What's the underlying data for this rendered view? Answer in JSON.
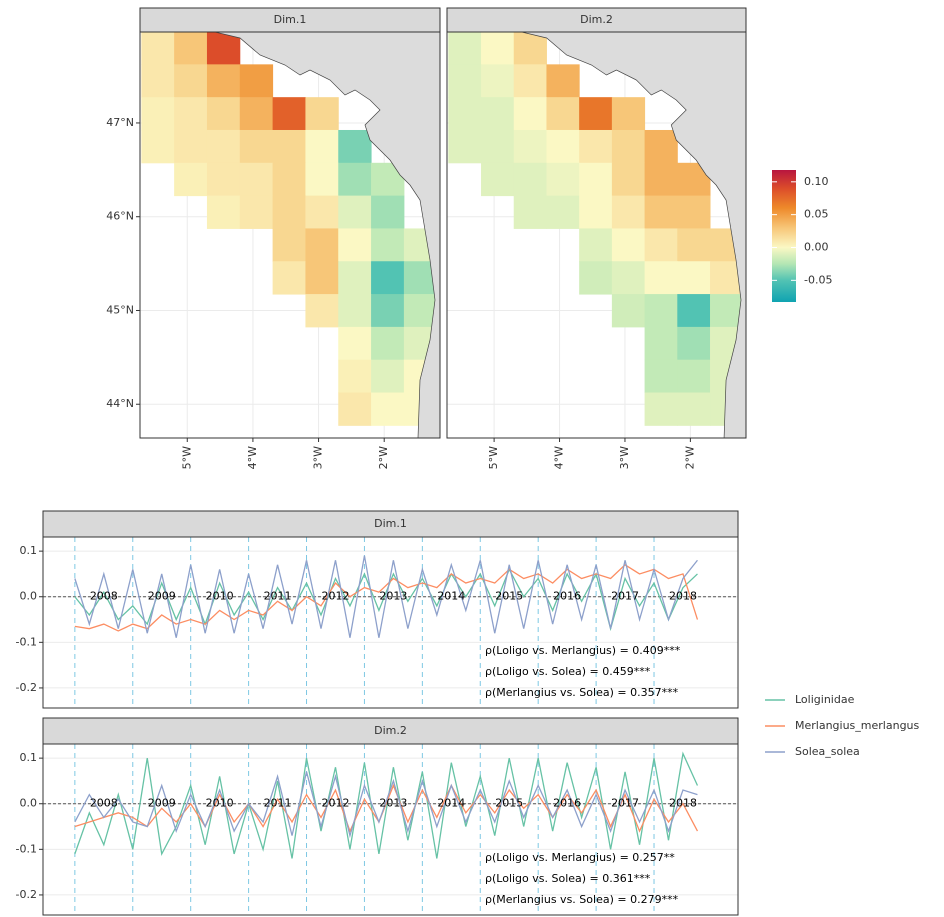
{
  "chart_data": [
    {
      "type": "heatmap",
      "x": [
        -5.45,
        -4.95,
        -4.45,
        -3.95,
        -3.45,
        -2.95,
        -2.45,
        -1.95,
        -1.45
      ],
      "y": [
        47.8,
        47.45,
        47.1,
        46.75,
        46.4,
        46.05,
        45.7,
        45.35,
        45.0,
        44.65,
        44.3,
        43.95
      ],
      "xlim": [
        -5.72,
        -1.15
      ],
      "ylim": [
        43.64,
        47.97
      ],
      "xticks": [
        {
          "value": -5,
          "label": "5°W"
        },
        {
          "value": -4,
          "label": "4°W"
        },
        {
          "value": -3,
          "label": "3°W"
        },
        {
          "value": -2,
          "label": "2°W"
        }
      ],
      "yticks": [
        {
          "value": 47,
          "label": "47°N"
        },
        {
          "value": 46,
          "label": "46°N"
        },
        {
          "value": 45,
          "label": "45°N"
        },
        {
          "value": 44,
          "label": "44°N"
        }
      ],
      "grid": true,
      "colorscale": [
        [
          -0.083,
          "#0fa3b1"
        ],
        [
          -0.05,
          "#52c3b3"
        ],
        [
          -0.025,
          "#b4e6b4"
        ],
        [
          0,
          "#fbf8c4"
        ],
        [
          0.03,
          "#f7c678"
        ],
        [
          0.06,
          "#ee8a2a"
        ],
        [
          0.09,
          "#dc4d2a"
        ],
        [
          0.118,
          "#b8163f"
        ]
      ],
      "colorlim": [
        -0.083,
        0.118
      ],
      "colorticks": [
        {
          "value": 0.1,
          "label": "0.10"
        },
        {
          "value": 0.05,
          "label": "0.05"
        },
        {
          "value": 0,
          "label": "0.00"
        },
        {
          "value": -0.05,
          "label": "-0.05"
        }
      ],
      "facets": [
        {
          "title": "Dim.1",
          "z": [
            [
              0.01,
              0.03,
              0.09,
              null,
              null,
              null,
              null,
              null,
              null
            ],
            [
              0.01,
              0.02,
              0.04,
              0.05,
              null,
              null,
              null,
              null,
              null
            ],
            [
              0.005,
              0.01,
              0.02,
              0.04,
              0.08,
              0.02,
              null,
              null,
              null
            ],
            [
              0.005,
              0.01,
              0.01,
              0.02,
              0.02,
              0.0,
              -0.04,
              null,
              null
            ],
            [
              null,
              0.005,
              0.01,
              0.01,
              0.02,
              0.0,
              -0.03,
              -0.02,
              null
            ],
            [
              null,
              null,
              0.005,
              0.01,
              0.02,
              0.01,
              -0.01,
              -0.03,
              null
            ],
            [
              null,
              null,
              null,
              null,
              0.02,
              0.03,
              0.0,
              -0.02,
              -0.01
            ],
            [
              null,
              null,
              null,
              null,
              0.01,
              0.03,
              -0.01,
              -0.05,
              -0.03
            ],
            [
              null,
              null,
              null,
              null,
              null,
              0.01,
              -0.01,
              -0.04,
              -0.02
            ],
            [
              null,
              null,
              null,
              null,
              null,
              null,
              0.0,
              -0.02,
              -0.01
            ],
            [
              null,
              null,
              null,
              null,
              null,
              null,
              0.005,
              -0.01,
              0.0
            ],
            [
              null,
              null,
              null,
              null,
              null,
              null,
              0.01,
              0.0,
              0.0
            ]
          ]
        },
        {
          "title": "Dim.2",
          "z": [
            [
              -0.01,
              0.0,
              0.02,
              null,
              null,
              null,
              null,
              null,
              null
            ],
            [
              -0.01,
              -0.005,
              0.01,
              0.04,
              null,
              null,
              null,
              null,
              null
            ],
            [
              -0.01,
              -0.01,
              0.0,
              0.02,
              0.07,
              0.03,
              null,
              null,
              null
            ],
            [
              -0.01,
              -0.01,
              -0.005,
              0.0,
              0.01,
              0.02,
              0.04,
              null,
              null
            ],
            [
              null,
              -0.01,
              -0.01,
              -0.005,
              0.0,
              0.02,
              0.04,
              0.04,
              null
            ],
            [
              null,
              null,
              -0.01,
              -0.01,
              0.0,
              0.01,
              0.03,
              0.03,
              null
            ],
            [
              null,
              null,
              null,
              null,
              -0.01,
              0.0,
              0.01,
              0.02,
              0.02
            ],
            [
              null,
              null,
              null,
              null,
              -0.015,
              -0.01,
              0.0,
              0.0,
              0.01
            ],
            [
              null,
              null,
              null,
              null,
              null,
              -0.015,
              -0.02,
              -0.05,
              -0.02
            ],
            [
              null,
              null,
              null,
              null,
              null,
              null,
              -0.02,
              -0.03,
              -0.01
            ],
            [
              null,
              null,
              null,
              null,
              null,
              null,
              -0.02,
              -0.02,
              -0.01
            ],
            [
              null,
              null,
              null,
              null,
              null,
              null,
              -0.01,
              -0.01,
              -0.01
            ]
          ]
        }
      ]
    },
    {
      "type": "line",
      "x": [
        2008,
        2008.25,
        2008.5,
        2008.75,
        2009,
        2009.25,
        2009.5,
        2009.75,
        2010,
        2010.25,
        2010.5,
        2010.75,
        2011,
        2011.25,
        2011.5,
        2011.75,
        2012,
        2012.25,
        2012.5,
        2012.75,
        2013,
        2013.25,
        2013.5,
        2013.75,
        2014,
        2014.25,
        2014.5,
        2014.75,
        2015,
        2015.25,
        2015.5,
        2015.75,
        2016,
        2016.25,
        2016.5,
        2016.75,
        2017,
        2017.25,
        2017.5,
        2017.75,
        2018,
        2018.25,
        2018.5,
        2018.75
      ],
      "xlim": [
        2007.45,
        2019.45
      ],
      "ylim": [
        -0.244,
        0.131
      ],
      "yticks": [
        {
          "value": 0.1,
          "label": "0.1"
        },
        {
          "value": 0,
          "label": "0.0"
        },
        {
          "value": -0.1,
          "label": "-0.1"
        },
        {
          "value": -0.2,
          "label": "-0.2"
        }
      ],
      "grid": true,
      "hline": 0,
      "vlines": [
        2008,
        2009,
        2010,
        2011,
        2012,
        2013,
        2014,
        2015,
        2016,
        2017,
        2018
      ],
      "year_labels": [
        "2008",
        "2009",
        "2010",
        "2011",
        "2012",
        "2013",
        "2014",
        "2015",
        "2016",
        "2017",
        "2018"
      ],
      "series": [
        {
          "name": "Loliginidae",
          "color": "#66c2a5"
        },
        {
          "name": "Merlangius_merlangus",
          "color": "#fc8d62"
        },
        {
          "name": "Solea_solea",
          "color": "#8da0cb"
        }
      ],
      "facets": [
        {
          "title": "Dim.1",
          "annotations": [
            "ρ(Loligo vs. Merlangius) = 0.409***",
            "ρ(Loligo vs. Solea) = 0.459***",
            "ρ(Merlangius vs. Solea) = 0.357***"
          ],
          "values": [
            [
              0.0,
              -0.04,
              0.01,
              -0.05,
              -0.02,
              -0.06,
              0.03,
              -0.05,
              0.02,
              -0.06,
              0.03,
              -0.04,
              0.01,
              -0.05,
              0.02,
              -0.03,
              0.03,
              -0.04,
              0.04,
              -0.02,
              0.05,
              -0.03,
              0.05,
              -0.01,
              0.04,
              -0.02,
              0.05,
              0.0,
              0.05,
              -0.02,
              0.06,
              0.0,
              0.04,
              -0.03,
              0.05,
              -0.01,
              0.05,
              -0.07,
              0.04,
              -0.02,
              0.03,
              -0.05,
              0.02,
              0.05
            ],
            [
              -0.065,
              -0.07,
              -0.06,
              -0.075,
              -0.06,
              -0.07,
              -0.04,
              -0.06,
              -0.05,
              -0.06,
              -0.03,
              -0.05,
              -0.03,
              -0.04,
              -0.01,
              -0.03,
              0.0,
              -0.02,
              0.03,
              0.0,
              0.02,
              0.01,
              0.04,
              0.02,
              0.03,
              0.02,
              0.05,
              0.03,
              0.04,
              0.03,
              0.06,
              0.04,
              0.05,
              0.03,
              0.06,
              0.04,
              0.05,
              0.04,
              0.07,
              0.05,
              0.06,
              0.04,
              0.05,
              -0.05
            ],
            [
              0.04,
              -0.06,
              0.05,
              -0.07,
              0.06,
              -0.08,
              0.05,
              -0.09,
              0.07,
              -0.08,
              0.06,
              -0.08,
              0.05,
              -0.07,
              0.07,
              -0.06,
              0.08,
              -0.07,
              0.08,
              -0.09,
              0.09,
              -0.09,
              0.08,
              -0.07,
              0.06,
              -0.04,
              0.07,
              -0.03,
              0.08,
              -0.08,
              0.07,
              -0.07,
              0.08,
              -0.06,
              0.07,
              -0.05,
              0.07,
              -0.07,
              0.08,
              -0.05,
              0.06,
              -0.05,
              0.04,
              0.08
            ]
          ]
        },
        {
          "title": "Dim.2",
          "annotations": [
            "ρ(Loligo vs. Merlangius) = 0.257**",
            "ρ(Loligo vs. Solea) = 0.361***",
            "ρ(Merlangius vs. Solea) = 0.279***"
          ],
          "values": [
            [
              -0.11,
              -0.02,
              -0.09,
              0.02,
              -0.1,
              0.1,
              -0.11,
              -0.05,
              0.04,
              -0.09,
              0.06,
              -0.11,
              0.0,
              -0.1,
              0.05,
              -0.12,
              0.1,
              -0.06,
              0.08,
              -0.1,
              0.09,
              -0.11,
              0.08,
              -0.08,
              0.07,
              -0.12,
              0.09,
              -0.05,
              0.06,
              -0.07,
              0.1,
              -0.05,
              0.1,
              -0.06,
              0.09,
              -0.03,
              0.08,
              -0.1,
              0.07,
              -0.09,
              0.1,
              -0.08,
              0.11,
              0.04
            ],
            [
              -0.05,
              -0.04,
              -0.03,
              -0.02,
              -0.03,
              -0.05,
              -0.01,
              -0.04,
              0.0,
              -0.05,
              0.02,
              -0.04,
              0.0,
              -0.05,
              0.01,
              -0.04,
              0.02,
              -0.03,
              0.03,
              -0.06,
              0.01,
              -0.04,
              0.04,
              -0.04,
              0.03,
              -0.03,
              0.04,
              -0.02,
              0.02,
              -0.02,
              0.03,
              -0.01,
              0.02,
              -0.03,
              0.02,
              -0.02,
              0.03,
              -0.05,
              0.02,
              -0.06,
              0.01,
              -0.04,
              0.0,
              -0.06
            ],
            [
              -0.04,
              0.02,
              -0.03,
              0.01,
              -0.04,
              -0.05,
              0.04,
              -0.06,
              0.02,
              -0.05,
              0.03,
              -0.06,
              0.0,
              -0.04,
              0.06,
              -0.07,
              0.07,
              -0.05,
              0.06,
              -0.07,
              0.04,
              -0.04,
              0.05,
              -0.06,
              0.05,
              -0.05,
              0.04,
              -0.04,
              0.03,
              -0.04,
              0.05,
              -0.03,
              0.04,
              -0.03,
              0.03,
              -0.05,
              0.02,
              -0.06,
              0.03,
              -0.04,
              0.03,
              -0.06,
              0.03,
              0.02
            ]
          ]
        }
      ]
    }
  ]
}
